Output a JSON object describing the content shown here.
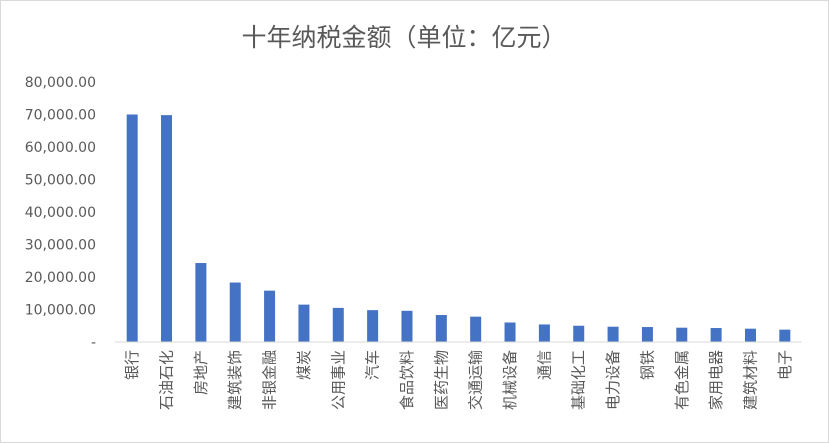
{
  "chart_data": {
    "type": "bar",
    "title": "十年纳税金额（单位：亿元）",
    "xlabel": "",
    "ylabel": "",
    "categories": [
      "银行",
      "石油石化",
      "房地产",
      "建筑装饰",
      "非银金融",
      "煤炭",
      "公用事业",
      "汽车",
      "食品饮料",
      "医药生物",
      "交通运输",
      "机械设备",
      "通信",
      "基础化工",
      "电力设备",
      "钢铁",
      "有色金属",
      "家用电器",
      "建筑材料",
      "电子"
    ],
    "values": [
      70000,
      69800,
      24300,
      18300,
      15800,
      11500,
      10500,
      9800,
      9600,
      8300,
      7800,
      6000,
      5400,
      5000,
      4700,
      4600,
      4400,
      4300,
      4100,
      3800
    ],
    "ylim": [
      0,
      80000
    ],
    "yticks": [
      {
        "value": 0,
        "label": "-"
      },
      {
        "value": 10000,
        "label": "10,000.00"
      },
      {
        "value": 20000,
        "label": "20,000.00"
      },
      {
        "value": 30000,
        "label": "30,000.00"
      },
      {
        "value": 40000,
        "label": "40,000.00"
      },
      {
        "value": 50000,
        "label": "50,000.00"
      },
      {
        "value": 60000,
        "label": "60,000.00"
      },
      {
        "value": 70000,
        "label": "70,000.00"
      },
      {
        "value": 80000,
        "label": "80,000.00"
      }
    ],
    "grid": false,
    "legend": "none",
    "bar_color": "#4472c4"
  }
}
